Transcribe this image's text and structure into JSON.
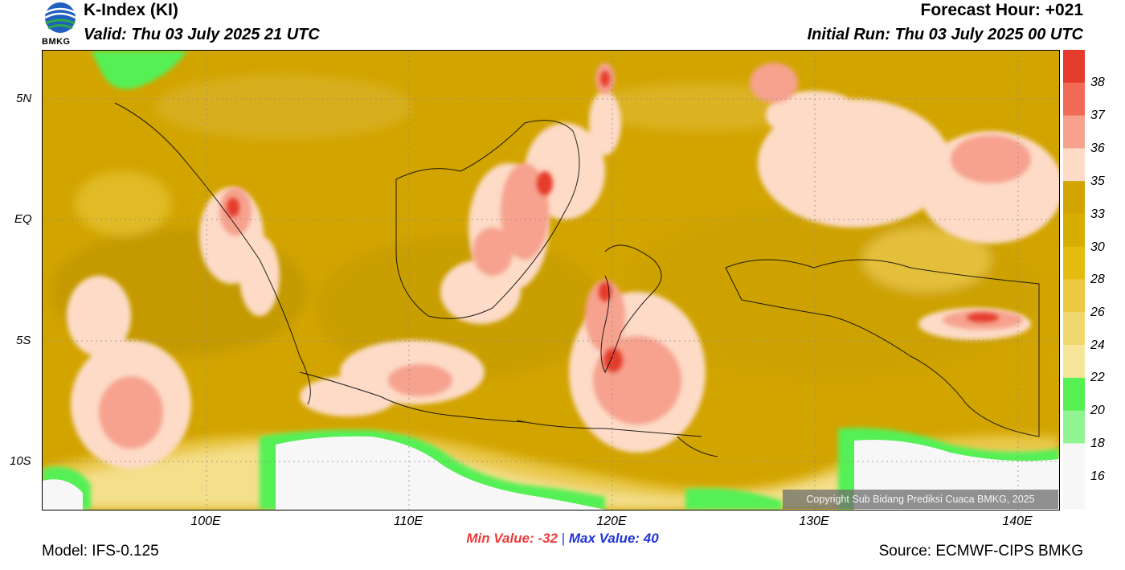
{
  "header": {
    "logo_text": "BMKG",
    "title": "K-Index (KI)",
    "valid": "Valid: Thu 03 July 2025 21 UTC",
    "forecast_hour": "Forecast Hour: +021",
    "initial_run": "Initial Run: Thu 03 July 2025 00 UTC"
  },
  "map": {
    "lat_labels": [
      "5N",
      "EQ",
      "5S",
      "10S"
    ],
    "lon_labels": [
      "100E",
      "110E",
      "120E",
      "130E",
      "140E"
    ],
    "lat_range": [
      -12,
      7
    ],
    "lon_range": [
      92,
      142
    ],
    "copyright": "Copyright Sub Bidang Prediksi Cuaca BMKG, 2025"
  },
  "colorbar": {
    "labels": [
      "38",
      "37",
      "36",
      "35",
      "33",
      "30",
      "28",
      "26",
      "24",
      "22",
      "20",
      "18",
      "16"
    ],
    "colors": [
      "#e53b2c",
      "#f06a55",
      "#f6a28e",
      "#fddbc7",
      "#d2a400",
      "#d7ae00",
      "#e4bc10",
      "#ebca42",
      "#f1d86e",
      "#f7e699",
      "#54f054",
      "#90f590",
      "#f7f7f7"
    ]
  },
  "stats": {
    "min_label": "Min Value: -32",
    "separator": "|",
    "max_label": "Max Value:  40"
  },
  "footer": {
    "model": "Model: IFS-0.125",
    "source": "Source: ECMWF-CIPS BMKG"
  }
}
